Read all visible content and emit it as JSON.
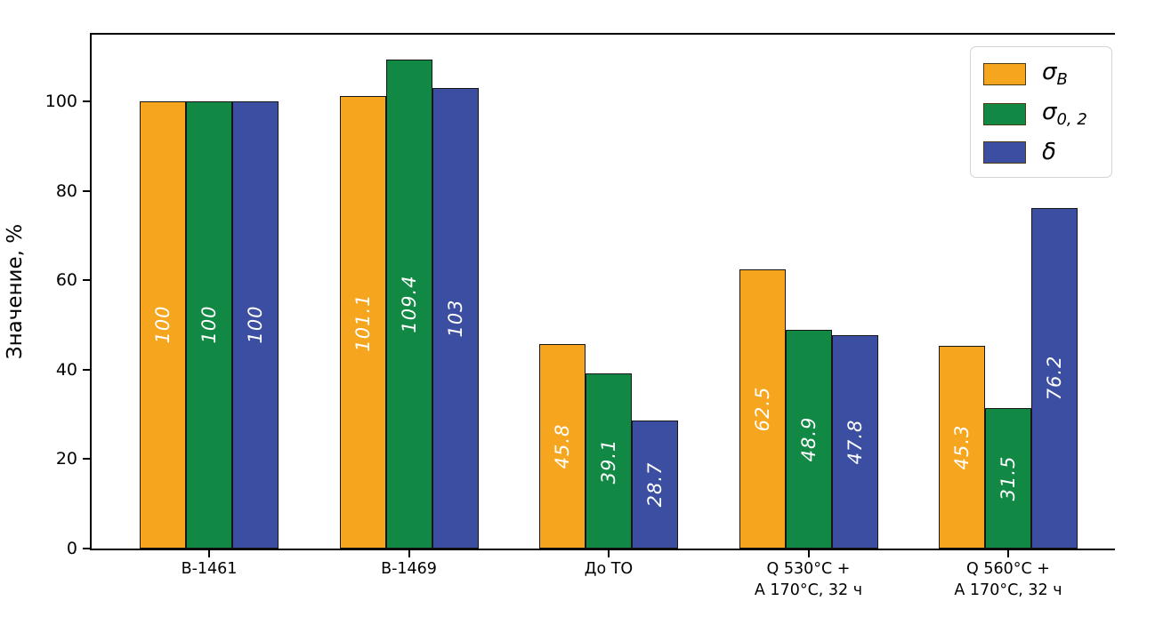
{
  "chart_data": {
    "type": "bar",
    "title": "",
    "xlabel": "",
    "ylabel": "Значение, %",
    "categories": [
      "В-1461",
      "В-1469",
      "До ТО",
      "Q 530°C +\nА 170°C, 32 ч",
      "Q 560°C +\nА 170°C, 32 ч"
    ],
    "series": [
      {
        "name": "sigma_B",
        "label_base": "σ",
        "label_sub": "B",
        "color": "#F6A51E",
        "values": [
          100,
          101.1,
          45.8,
          62.5,
          45.3
        ]
      },
      {
        "name": "sigma_02",
        "label_base": "σ",
        "label_sub": "0, 2",
        "color": "#118945",
        "values": [
          100,
          109.4,
          39.1,
          48.9,
          31.5
        ]
      },
      {
        "name": "delta",
        "label_base": "δ",
        "label_sub": "",
        "color": "#3B4EA2",
        "values": [
          100,
          103,
          28.7,
          47.8,
          76.2
        ]
      }
    ],
    "yticks": [
      0,
      20,
      40,
      60,
      80,
      100
    ],
    "ylim": [
      0,
      114.9
    ],
    "grid": false,
    "legend_position": "upper right",
    "bar_value_label_color": "#ffffff",
    "value_labels": [
      [
        "100",
        "101.1",
        "45.8",
        "62.5",
        "45.3"
      ],
      [
        "100",
        "109.4",
        "39.1",
        "48.9",
        "31.5"
      ],
      [
        "100",
        "103",
        "28.7",
        "47.8",
        "76.2"
      ]
    ]
  }
}
